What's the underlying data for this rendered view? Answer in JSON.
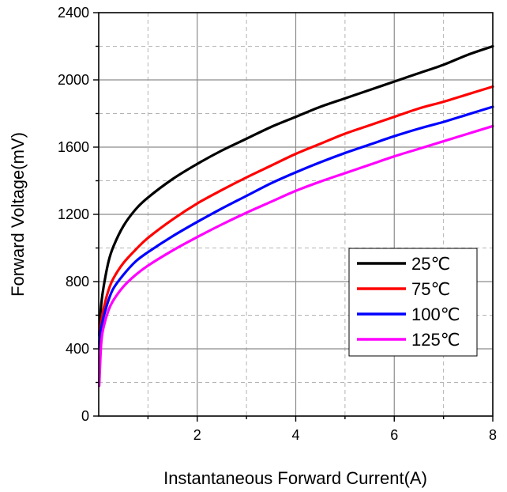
{
  "chart_data": {
    "type": "line",
    "title": "",
    "xlabel": "Instantaneous Forward Current(A)",
    "ylabel": "Forward Voltage(mV)",
    "xlim": [
      0,
      8
    ],
    "ylim": [
      0,
      2400
    ],
    "x_ticks": [
      "2",
      "4",
      "6",
      "8"
    ],
    "y_ticks": [
      "0",
      "400",
      "800",
      "1200",
      "1600",
      "2000",
      "2400"
    ],
    "grid": true,
    "legend_position": "bottom-right",
    "series": [
      {
        "name": "25℃",
        "color": "#000000",
        "x": [
          0.01,
          0.05,
          0.1,
          0.2,
          0.3,
          0.5,
          0.75,
          1,
          1.5,
          2,
          2.5,
          3,
          3.5,
          4,
          4.5,
          5,
          5.5,
          6,
          6.5,
          7,
          7.5,
          8
        ],
        "y": [
          480,
          660,
          770,
          920,
          1010,
          1130,
          1230,
          1300,
          1410,
          1500,
          1580,
          1650,
          1720,
          1780,
          1840,
          1890,
          1940,
          1990,
          2040,
          2090,
          2150,
          2200
        ]
      },
      {
        "name": "75℃",
        "color": "#ff0000",
        "x": [
          0.01,
          0.05,
          0.1,
          0.2,
          0.3,
          0.5,
          0.75,
          1,
          1.5,
          2,
          2.5,
          3,
          3.5,
          4,
          4.5,
          5,
          5.5,
          6,
          6.5,
          7,
          7.5,
          8
        ],
        "y": [
          430,
          560,
          640,
          750,
          820,
          910,
          990,
          1060,
          1170,
          1265,
          1345,
          1420,
          1490,
          1560,
          1620,
          1680,
          1730,
          1780,
          1830,
          1870,
          1915,
          1960
        ]
      },
      {
        "name": "100℃",
        "color": "#0000ff",
        "x": [
          0.01,
          0.05,
          0.1,
          0.2,
          0.3,
          0.5,
          0.75,
          1,
          1.5,
          2,
          2.5,
          3,
          3.5,
          4,
          4.5,
          5,
          5.5,
          6,
          6.5,
          7,
          7.5,
          8
        ],
        "y": [
          400,
          520,
          590,
          690,
          760,
          840,
          920,
          975,
          1070,
          1155,
          1235,
          1310,
          1385,
          1450,
          1510,
          1565,
          1615,
          1665,
          1710,
          1750,
          1795,
          1840
        ]
      },
      {
        "name": "125℃",
        "color": "#ff00ff",
        "x": [
          0.01,
          0.05,
          0.1,
          0.2,
          0.3,
          0.5,
          0.75,
          1,
          1.5,
          2,
          2.5,
          3,
          3.5,
          4,
          4.5,
          5,
          5.5,
          6,
          6.5,
          7,
          7.5,
          8
        ],
        "y": [
          180,
          430,
          530,
          630,
          690,
          770,
          840,
          895,
          985,
          1065,
          1140,
          1210,
          1275,
          1340,
          1395,
          1445,
          1495,
          1545,
          1590,
          1635,
          1680,
          1725
        ]
      }
    ]
  }
}
